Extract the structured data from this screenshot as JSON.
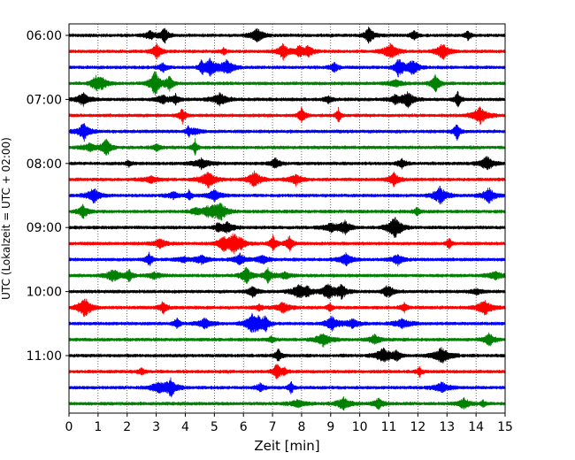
{
  "chart_data": {
    "type": "line",
    "title": "",
    "xlabel": "Zeit  [min]",
    "ylabel": "UTC (Lokalzeit = UTC + 02:00)",
    "xlim": [
      0,
      15
    ],
    "x_ticks": [
      0,
      1,
      2,
      3,
      4,
      5,
      6,
      7,
      8,
      9,
      10,
      11,
      12,
      13,
      14,
      15
    ],
    "x_tick_labels": [
      "0",
      "1",
      "2",
      "3",
      "4",
      "5",
      "6",
      "7",
      "8",
      "9",
      "10",
      "11",
      "12",
      "13",
      "14",
      "15"
    ],
    "y_ticks": [
      "06:00",
      "07:00",
      "08:00",
      "09:00",
      "10:00",
      "11:00"
    ],
    "vertical_grid": "dotted",
    "row_interval_minutes": 15,
    "trace_colors": [
      "#000000",
      "#ff0000",
      "#0000ff",
      "#008000"
    ],
    "traces": [
      {
        "start": "06:00",
        "color": "#000000"
      },
      {
        "start": "06:15",
        "color": "#ff0000"
      },
      {
        "start": "06:30",
        "color": "#0000ff"
      },
      {
        "start": "06:45",
        "color": "#008000"
      },
      {
        "start": "07:00",
        "color": "#000000"
      },
      {
        "start": "07:15",
        "color": "#ff0000"
      },
      {
        "start": "07:30",
        "color": "#0000ff"
      },
      {
        "start": "07:45",
        "color": "#008000"
      },
      {
        "start": "08:00",
        "color": "#000000"
      },
      {
        "start": "08:15",
        "color": "#ff0000"
      },
      {
        "start": "08:30",
        "color": "#0000ff"
      },
      {
        "start": "08:45",
        "color": "#008000"
      },
      {
        "start": "09:00",
        "color": "#000000"
      },
      {
        "start": "09:15",
        "color": "#ff0000"
      },
      {
        "start": "09:30",
        "color": "#0000ff"
      },
      {
        "start": "09:45",
        "color": "#008000"
      },
      {
        "start": "10:00",
        "color": "#000000"
      },
      {
        "start": "10:15",
        "color": "#ff0000"
      },
      {
        "start": "10:30",
        "color": "#0000ff"
      },
      {
        "start": "10:45",
        "color": "#008000"
      },
      {
        "start": "11:00",
        "color": "#000000"
      },
      {
        "start": "11:15",
        "color": "#ff0000"
      },
      {
        "start": "11:30",
        "color": "#0000ff"
      },
      {
        "start": "11:45",
        "color": "#008000"
      }
    ]
  }
}
